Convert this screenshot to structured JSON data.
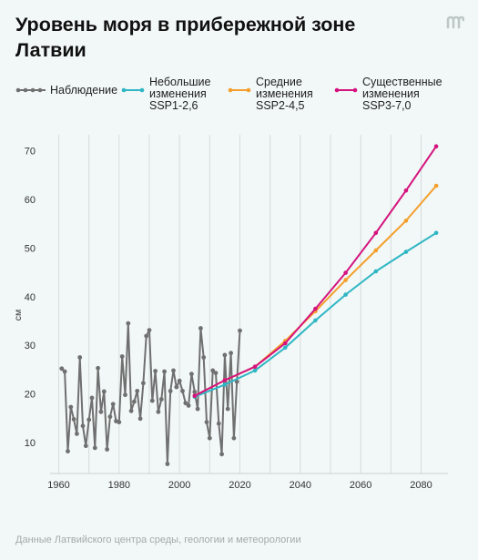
{
  "title": "Уровень моря в прибережной зоне Латвии",
  "source": "Данные Латвийского центра среды, геологии и метеорологии",
  "logo_icon": "meduza-logo-icon",
  "legend": [
    {
      "key": "obs",
      "lines": [
        "Наблюдение"
      ],
      "color": "#707070"
    },
    {
      "key": "ssp126",
      "lines": [
        "Небольшие",
        "изменения",
        "SSP1-2,6"
      ],
      "color": "#2fb6c4"
    },
    {
      "key": "ssp245",
      "lines": [
        "Средние",
        "изменения",
        "SSP2-4,5"
      ],
      "color": "#f59e2b"
    },
    {
      "key": "ssp370",
      "lines": [
        "Существенные",
        "изменения",
        "SSP3-7,0"
      ],
      "color": "#d5127e"
    }
  ],
  "chart_data": {
    "type": "line",
    "ylabel": "см",
    "xlim": [
      1958,
      2088
    ],
    "ylim": [
      5,
      73
    ],
    "xticks": [
      1960,
      1980,
      2000,
      2020,
      2040,
      2060,
      2080
    ],
    "yticks": [
      10,
      20,
      30,
      40,
      50,
      60,
      70
    ],
    "grid": "vertical",
    "series": [
      {
        "name": "Наблюдение",
        "key": "obs",
        "color": "#707070",
        "x": [
          1961,
          1962,
          1963,
          1964,
          1965,
          1966,
          1967,
          1968,
          1969,
          1970,
          1971,
          1972,
          1973,
          1974,
          1975,
          1976,
          1977,
          1978,
          1979,
          1980,
          1981,
          1982,
          1983,
          1984,
          1985,
          1986,
          1987,
          1988,
          1989,
          1990,
          1991,
          1992,
          1993,
          1994,
          1995,
          1996,
          1997,
          1998,
          1999,
          2000,
          2001,
          2002,
          2003,
          2004,
          2005,
          2006,
          2007,
          2008,
          2009,
          2010,
          2011,
          2012,
          2013,
          2014,
          2015,
          2016,
          2017,
          2018,
          2019,
          2020
        ],
        "y": [
          25.2,
          24.6,
          8.2,
          17.3,
          14.8,
          11.8,
          27.5,
          13.4,
          9.3,
          14.7,
          19.2,
          8.9,
          25.3,
          16.3,
          20.5,
          8.6,
          15.3,
          17.9,
          14.4,
          14.2,
          27.7,
          19.8,
          34.5,
          16.5,
          18.4,
          20.6,
          14.9,
          22.2,
          31.9,
          33.1,
          18.6,
          24.7,
          16.3,
          18.9,
          24.6,
          5.6,
          20.6,
          24.8,
          21.4,
          22.7,
          20.6,
          18.1,
          17.6,
          24.1,
          20.4,
          16.9,
          33.5,
          27.5,
          14.2,
          10.9,
          24.8,
          24.3,
          13.9,
          7.6,
          28.0,
          16.9,
          28.4,
          10.9,
          22.5,
          33.0
        ]
      },
      {
        "name": "Небольшие изменения SSP1-2,6",
        "key": "ssp126",
        "color": "#2fb6c4",
        "x": [
          2005,
          2015,
          2025,
          2035,
          2045,
          2055,
          2065,
          2075,
          2085
        ],
        "y": [
          19.4,
          21.9,
          24.8,
          29.5,
          35.1,
          40.4,
          45.2,
          49.2,
          53.1
        ]
      },
      {
        "name": "Средние изменения SSP2-4,5",
        "key": "ssp245",
        "color": "#f59e2b",
        "x": [
          2005,
          2015,
          2025,
          2035,
          2045,
          2055,
          2065,
          2075,
          2085
        ],
        "y": [
          19.6,
          22.8,
          25.6,
          30.9,
          37.0,
          43.4,
          49.5,
          55.6,
          62.8
        ]
      },
      {
        "name": "Существенные изменения SSP3-7,0",
        "key": "ssp370",
        "color": "#d5127e",
        "x": [
          2005,
          2015,
          2025,
          2035,
          2045,
          2055,
          2065,
          2075,
          2085
        ],
        "y": [
          19.6,
          22.8,
          25.6,
          30.4,
          37.5,
          44.9,
          53.1,
          61.8,
          70.9
        ]
      }
    ]
  }
}
